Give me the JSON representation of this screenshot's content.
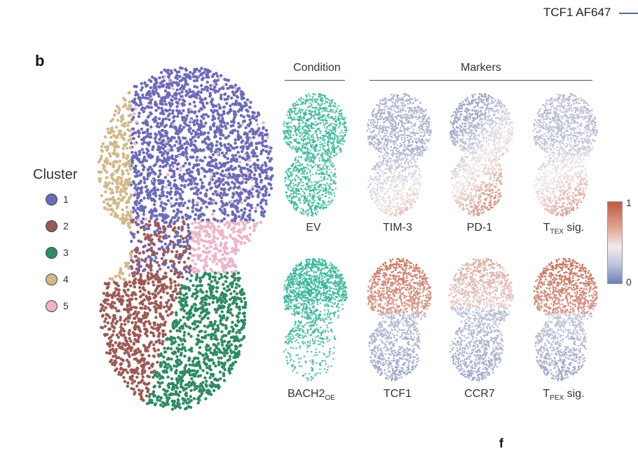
{
  "header": {
    "top_right_label": "TCF1 AF647"
  },
  "panel": {
    "letter": "b",
    "condition_header": "Condition",
    "markers_header": "Markers"
  },
  "legend": {
    "title": "Cluster",
    "items": [
      {
        "label": "1",
        "color": "#6c6bb8"
      },
      {
        "label": "2",
        "color": "#9c5a55"
      },
      {
        "label": "3",
        "color": "#2e8b63"
      },
      {
        "label": "4",
        "color": "#d2b88a"
      },
      {
        "label": "5",
        "color": "#ebb6c6"
      }
    ]
  },
  "colorbar": {
    "max_label": "1",
    "min_label": "0",
    "high_color": "#c15a40",
    "low_color": "#6f80b6"
  },
  "plots": {
    "row1": [
      {
        "main": "EV",
        "sub": "",
        "suffix": ""
      },
      {
        "main": "TIM-3",
        "sub": "",
        "suffix": ""
      },
      {
        "main": "PD-1",
        "sub": "",
        "suffix": ""
      },
      {
        "main": "T",
        "sub": "TEX",
        "suffix": " sig."
      }
    ],
    "row2": [
      {
        "main": "BACH2",
        "sub": "OE",
        "suffix": ""
      },
      {
        "main": "TCF1",
        "sub": "",
        "suffix": ""
      },
      {
        "main": "CCR7",
        "sub": "",
        "suffix": ""
      },
      {
        "main": "T",
        "sub": "PEX",
        "suffix": " sig."
      }
    ]
  },
  "footer": {
    "partial_letter": "f"
  }
}
